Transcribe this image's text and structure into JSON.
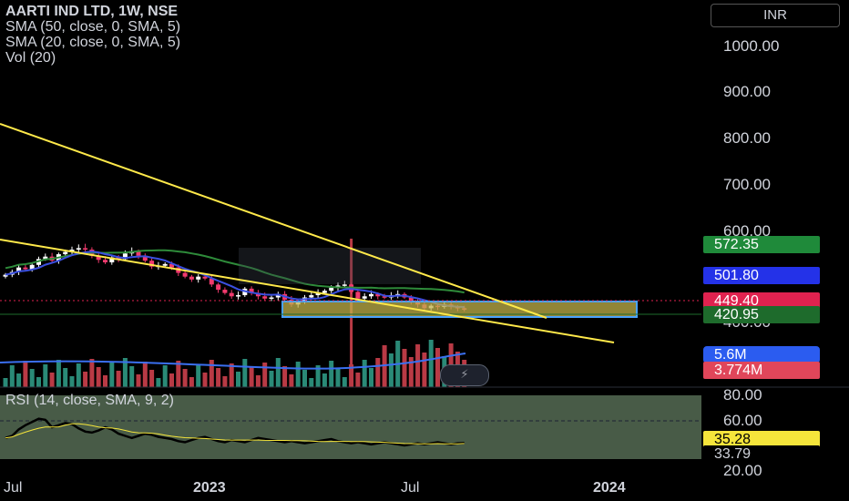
{
  "header": {
    "title": "AARTI IND LTD, 1W, NSE",
    "indicators": [
      "SMA (50, close, 0, SMA, 5)",
      "SMA (20, close, 0, SMA, 5)",
      "Vol (20)"
    ],
    "currency": "INR"
  },
  "rsi_legend": "RSI (14, close, SMA, 9, 2)",
  "price_axis": [
    "1000.00",
    "900.00",
    "800.00",
    "700.00",
    "600.00",
    "400.00"
  ],
  "rsi_axis": [
    "80.00",
    "60.00",
    "20.00"
  ],
  "time_axis": [
    "Jul",
    "2023",
    "Jul",
    "2024"
  ],
  "badges": {
    "sma50": "572.35",
    "sma20": "501.80",
    "price": "449.40",
    "level": "420.95",
    "vol_ma": "5.6M",
    "vol": "3.774M",
    "rsi": "35.28",
    "rsi_ma": "33.79"
  },
  "colors": {
    "up": "#ffffff",
    "down": "#f23a6e",
    "sma50": "#2e8b3a",
    "sma20": "#3a4fe0",
    "trendline": "#ffe94a",
    "vol_up": "#2a8a77",
    "vol_down": "#b93a45",
    "zone": "#c2b24a"
  },
  "chart_data": [
    {
      "type": "candlestick",
      "title": "AARTI IND LTD, 1W, NSE",
      "x": [
        "2022-07",
        "2023-01",
        "2023-07",
        "2024-01"
      ],
      "ylim": [
        360,
        1060
      ],
      "y_scale": "log",
      "grid": false,
      "last_close": 449.4,
      "moving_averages": [
        {
          "name": "SMA (50, close, 0, SMA, 5)",
          "last": 572.35
        },
        {
          "name": "SMA (20, close, 0, SMA, 5)",
          "last": 501.8
        }
      ],
      "horizontal_level": 420.95,
      "trendlines": [
        "upper descending",
        "lower descending"
      ]
    },
    {
      "type": "bar",
      "title": "Vol (20)",
      "last": "3.774M",
      "ma": "5.6M"
    },
    {
      "type": "line",
      "title": "RSI (14, close, SMA, 9, 2)",
      "ylim": [
        20,
        80
      ],
      "band": [
        30,
        80
      ],
      "level": 60,
      "last": 35.28,
      "ma_last": 33.79
    }
  ]
}
